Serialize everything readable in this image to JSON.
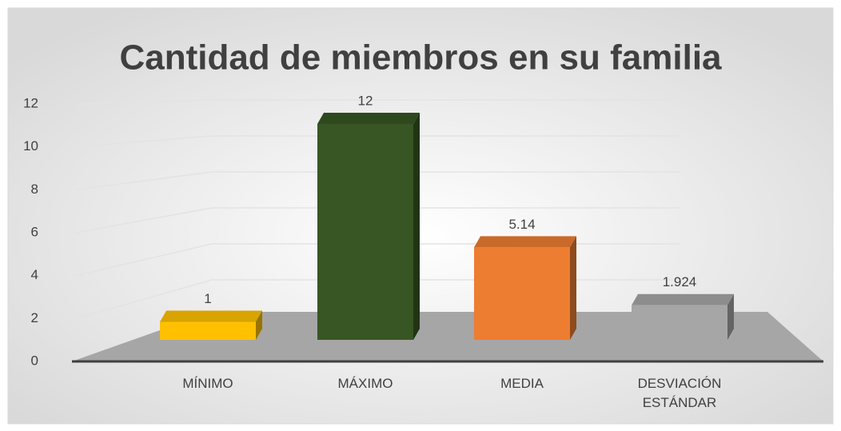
{
  "chart_data": {
    "type": "bar3d",
    "title": "Cantidad de miembros en su familia",
    "categories": [
      "MÍNIMO",
      "MÁXIMO",
      "MEDIA",
      "DESVIACIÓN ESTÁNDAR"
    ],
    "values": [
      1,
      12,
      5.14,
      1.924
    ],
    "colors": [
      "#ffc000",
      "#375623",
      "#ed7d31",
      "#a6a6a6"
    ],
    "ylim": [
      0,
      12
    ],
    "yticks": [
      0,
      2,
      4,
      6,
      8,
      10,
      12
    ],
    "grid": true
  }
}
